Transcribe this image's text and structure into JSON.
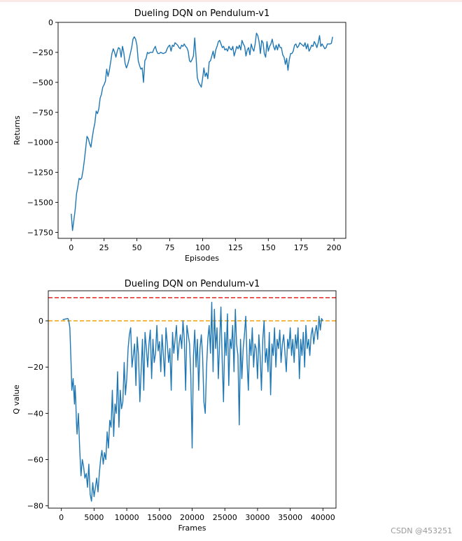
{
  "watermark": "CSDN @453251",
  "chart_data": [
    {
      "type": "line",
      "title": "Dueling DQN on Pendulum-v1",
      "xlabel": "Episodes",
      "ylabel": "Returns",
      "xlim": [
        -10,
        209
      ],
      "ylim": [
        -1800,
        0
      ],
      "xticks": [
        0,
        25,
        50,
        75,
        100,
        125,
        150,
        175,
        200
      ],
      "yticks": [
        0,
        -250,
        -500,
        -750,
        -1000,
        -1250,
        -1500,
        -1750
      ],
      "grid": false,
      "line_color": "#1f77b4",
      "series": [
        {
          "x": [
            0,
            1,
            2,
            3,
            4,
            5,
            6,
            7,
            8,
            9,
            10,
            11,
            12,
            13,
            14,
            15,
            16,
            17,
            18,
            19,
            20,
            21,
            22,
            23,
            24,
            25,
            26,
            27,
            28,
            29,
            30,
            31,
            32,
            33,
            34,
            35,
            36,
            37,
            38,
            39,
            40,
            41,
            42,
            43,
            44,
            45,
            46,
            47,
            48,
            49,
            50,
            51,
            52,
            53,
            54,
            55,
            56,
            57,
            58,
            59,
            60,
            61,
            62,
            63,
            64,
            65,
            66,
            67,
            68,
            69,
            70,
            71,
            72,
            73,
            74,
            75,
            76,
            77,
            78,
            79,
            80,
            81,
            82,
            83,
            84,
            85,
            86,
            87,
            88,
            89,
            90,
            91,
            92,
            93,
            94,
            95,
            96,
            97,
            98,
            99,
            100,
            101,
            102,
            103,
            104,
            105,
            106,
            107,
            108,
            109,
            110,
            111,
            112,
            113,
            114,
            115,
            116,
            117,
            118,
            119,
            120,
            121,
            122,
            123,
            124,
            125,
            126,
            127,
            128,
            129,
            130,
            131,
            132,
            133,
            134,
            135,
            136,
            137,
            138,
            139,
            140,
            141,
            142,
            143,
            144,
            145,
            146,
            147,
            148,
            149,
            150,
            151,
            152,
            153,
            154,
            155,
            156,
            157,
            158,
            159,
            160,
            161,
            162,
            163,
            164,
            165,
            166,
            167,
            168,
            169,
            170,
            171,
            172,
            173,
            174,
            175,
            176,
            177,
            178,
            179,
            180,
            181,
            182,
            183,
            184,
            185,
            186,
            187,
            188,
            189,
            190,
            191,
            192,
            193,
            194,
            195,
            196,
            197,
            198,
            199
          ],
          "y": [
            -1595,
            -1735,
            -1650,
            -1560,
            -1430,
            -1370,
            -1300,
            -1310,
            -1295,
            -1230,
            -1150,
            -1050,
            -950,
            -970,
            -1010,
            -1040,
            -960,
            -890,
            -840,
            -740,
            -760,
            -720,
            -630,
            -600,
            -540,
            -520,
            -490,
            -390,
            -450,
            -400,
            -330,
            -260,
            -220,
            -250,
            -290,
            -240,
            -210,
            -220,
            -290,
            -200,
            -250,
            -340,
            -380,
            -350,
            -310,
            -260,
            -210,
            -140,
            -120,
            -140,
            -190,
            -320,
            -360,
            -390,
            -380,
            -500,
            -320,
            -300,
            -250,
            -260,
            -250,
            -250,
            -250,
            -220,
            -200,
            -240,
            -260,
            -260,
            -250,
            -255,
            -260,
            -255,
            -250,
            -220,
            -200,
            -190,
            -240,
            -190,
            -200,
            -170,
            -180,
            -190,
            -210,
            -220,
            -190,
            -200,
            -180,
            -200,
            -210,
            -240,
            -320,
            -330,
            -310,
            -280,
            -130,
            -290,
            -460,
            -500,
            -520,
            -540,
            -470,
            -380,
            -450,
            -420,
            -470,
            -330,
            -320,
            -280,
            -240,
            -300,
            -230,
            -200,
            -160,
            -150,
            -180,
            -210,
            -200,
            -230,
            -220,
            -240,
            -200,
            -220,
            -230,
            -200,
            -280,
            -240,
            -200,
            -220,
            -190,
            -230,
            -150,
            -180,
            -200,
            -280,
            -230,
            -210,
            -270,
            -180,
            -220,
            -240,
            -180,
            -90,
            -110,
            -160,
            -260,
            -150,
            -170,
            -260,
            -290,
            -160,
            -240,
            -200,
            -180,
            -140,
            -200,
            -230,
            -190,
            -230,
            -180,
            -210,
            -210,
            -270,
            -290,
            -350,
            -300,
            -400,
            -310,
            -260,
            -260,
            -240,
            -190,
            -180,
            -210,
            -200,
            -170,
            -180,
            -190,
            -200,
            -170,
            -220,
            -180,
            -240,
            -220,
            -190,
            -200,
            -160,
            -180,
            -210,
            -170,
            -110,
            -200,
            -180,
            -200,
            -220,
            -210,
            -180,
            -180,
            -180,
            -175,
            -120
          ]
        }
      ]
    },
    {
      "type": "line",
      "title": "Dueling DQN on Pendulum-v1",
      "xlabel": "Frames",
      "ylabel": "Q value",
      "xlim": [
        -2000,
        42000
      ],
      "ylim": [
        -81,
        13
      ],
      "xticks": [
        0,
        5000,
        10000,
        15000,
        20000,
        25000,
        30000,
        35000,
        40000
      ],
      "yticks": [
        0,
        -20,
        -40,
        -60,
        -80
      ],
      "grid": false,
      "line_color": "#1f77b4",
      "reference_lines": [
        {
          "y": 10,
          "color": "#e8241c",
          "style": "dashed"
        },
        {
          "y": 0,
          "color": "#f4a20c",
          "style": "dashed"
        }
      ],
      "series": [
        {
          "x": [
            200,
            600,
            1000,
            1100,
            1300,
            1400,
            1500,
            1600,
            1800,
            2000,
            2100,
            2200,
            2300,
            2400,
            2600,
            2800,
            3000,
            3200,
            3400,
            3600,
            3800,
            4000,
            4200,
            4400,
            4600,
            4800,
            5000,
            5200,
            5400,
            5600,
            5800,
            6000,
            6200,
            6400,
            6600,
            6800,
            7000,
            7200,
            7400,
            7600,
            7800,
            8000,
            8200,
            8400,
            8600,
            8800,
            9000,
            9200,
            9400,
            9600,
            9800,
            10000,
            10200,
            10400,
            10600,
            10800,
            11000,
            11200,
            11400,
            11600,
            11800,
            12000,
            12200,
            12400,
            12600,
            12800,
            13000,
            13200,
            13400,
            13600,
            13800,
            14000,
            14200,
            14400,
            14600,
            14800,
            15000,
            15200,
            15400,
            15600,
            15800,
            16000,
            16200,
            16400,
            16600,
            16800,
            17000,
            17200,
            17400,
            17600,
            17800,
            18000,
            18200,
            18400,
            18600,
            18800,
            19000,
            19200,
            19400,
            19600,
            19800,
            20000,
            20200,
            20400,
            20600,
            20800,
            21000,
            21200,
            21400,
            21600,
            21800,
            22000,
            22200,
            22400,
            22600,
            22800,
            23000,
            23200,
            23400,
            23600,
            23800,
            24000,
            24200,
            24400,
            24600,
            24800,
            25000,
            25200,
            25400,
            25600,
            25800,
            26000,
            26200,
            26400,
            26600,
            26800,
            27000,
            27200,
            27400,
            27600,
            27800,
            28000,
            28200,
            28400,
            28600,
            28800,
            29000,
            29200,
            29400,
            29600,
            29800,
            30000,
            30200,
            30400,
            30600,
            30800,
            31000,
            31200,
            31400,
            31600,
            31800,
            32000,
            32200,
            32400,
            32600,
            32800,
            33000,
            33200,
            33400,
            33600,
            33800,
            34000,
            34200,
            34400,
            34600,
            34800,
            35000,
            35200,
            35400,
            35600,
            35800,
            36000,
            36200,
            36400,
            36600,
            36800,
            37000,
            37200,
            37400,
            37600,
            37800,
            38000,
            38200,
            38400,
            38600,
            38800,
            39000,
            39200,
            39400,
            39600,
            39800,
            40000
          ],
          "y": [
            0.5,
            0.8,
            1.0,
            0.3,
            -3,
            -12,
            -20,
            -30,
            -25,
            -36,
            -28,
            -34,
            -44,
            -49,
            -40,
            -55,
            -67,
            -60,
            -63,
            -68,
            -66,
            -72,
            -62,
            -75,
            -78,
            -70,
            -76,
            -72,
            -68,
            -74,
            -66,
            -60,
            -56,
            -62,
            -57,
            -60,
            -48,
            -55,
            -43,
            -46,
            -30,
            -50,
            -36,
            -40,
            -22,
            -46,
            -30,
            -38,
            -35,
            -18,
            -32,
            -25,
            -12,
            -6,
            -3,
            -20,
            -15,
            -10,
            -28,
            -7,
            -15,
            -35,
            -22,
            -8,
            -30,
            -5,
            -12,
            -20,
            -10,
            -4,
            -25,
            -8,
            -18,
            -14,
            -2,
            -13,
            -9,
            -22,
            -6,
            -15,
            -24,
            -3,
            -10,
            -18,
            -12,
            -30,
            -5,
            -14,
            -8,
            -2,
            -17,
            -10,
            -6,
            -12,
            0,
            -8,
            -30,
            -2,
            -6,
            -10,
            -24,
            -55,
            -15,
            -4,
            -20,
            -8,
            -30,
            -12,
            -6,
            -15,
            -35,
            -40,
            -20,
            -8,
            -2,
            -14,
            8,
            -22,
            5,
            -12,
            -3,
            -25,
            -10,
            6,
            -18,
            -35,
            -5,
            -15,
            3,
            -28,
            -8,
            -12,
            -2,
            -22,
            5,
            -10,
            -15,
            -45,
            -8,
            -25,
            -12,
            -6,
            2,
            -18,
            -30,
            -8,
            -15,
            -3,
            -20,
            -10,
            -12,
            -25,
            -6,
            -15,
            -30,
            -8,
            0,
            -18,
            -12,
            -22,
            -5,
            -32,
            -10,
            -15,
            -3,
            -20,
            -8,
            -12,
            -4,
            -18,
            -10,
            -6,
            -14,
            -22,
            -8,
            -12,
            -3,
            -15,
            -8,
            -18,
            -6,
            -12,
            -3,
            -25,
            -8,
            -15,
            -5,
            -20,
            -2,
            -12,
            -8,
            -15,
            -6,
            -3,
            -10,
            -5,
            -2,
            -8,
            2,
            -4,
            1,
            0
          ]
        }
      ]
    }
  ]
}
